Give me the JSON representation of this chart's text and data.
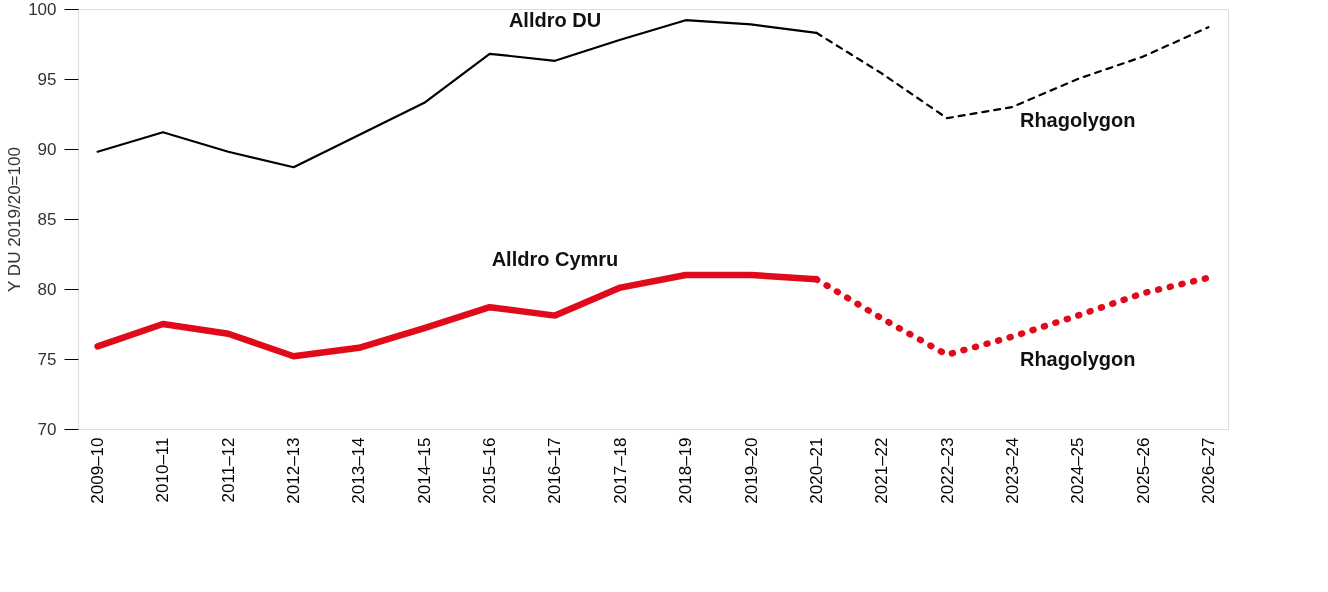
{
  "chart_data": {
    "type": "line",
    "ylabel": "Y DU 2019/20=100",
    "categories": [
      "2009–10",
      "2010–11",
      "2011–12",
      "2012–13",
      "2013–14",
      "2014–15",
      "2015–16",
      "2016–17",
      "2017–18",
      "2018–19",
      "2019–20",
      "2020–21",
      "2021–22",
      "2022–23",
      "2023–24",
      "2024–25",
      "2025–26",
      "2026–27"
    ],
    "series": [
      {
        "name": "Alldro DU",
        "color": "#000000",
        "line_style": "solid",
        "values": [
          89.8,
          91.2,
          89.8,
          88.7,
          91.0,
          93.3,
          96.8,
          96.3,
          97.8,
          99.2,
          98.9,
          98.3,
          null,
          null,
          null,
          null,
          null,
          null
        ]
      },
      {
        "name": "Rhagolygon",
        "color": "#000000",
        "line_style": "dashed",
        "values": [
          null,
          null,
          null,
          null,
          null,
          null,
          null,
          null,
          null,
          null,
          null,
          98.3,
          95.4,
          92.2,
          93.0,
          95.0,
          96.6,
          98.7
        ]
      },
      {
        "name": "Alldro Cymru",
        "color": "#e00a1a",
        "line_style": "solid",
        "values": [
          75.9,
          77.5,
          76.8,
          75.2,
          75.8,
          77.2,
          78.7,
          78.1,
          80.1,
          81.0,
          81.0,
          80.7,
          null,
          null,
          null,
          null,
          null,
          null
        ]
      },
      {
        "name": "Rhagolygon",
        "color": "#e00a1a",
        "line_style": "dotted",
        "values": [
          null,
          null,
          null,
          null,
          null,
          null,
          null,
          null,
          null,
          null,
          null,
          80.7,
          77.9,
          75.3,
          76.6,
          78.1,
          79.7,
          80.8
        ]
      }
    ],
    "ylim": [
      70,
      100
    ],
    "yticks": [
      70,
      75,
      80,
      85,
      90,
      95,
      100
    ],
    "grid": false,
    "marker": "none"
  }
}
